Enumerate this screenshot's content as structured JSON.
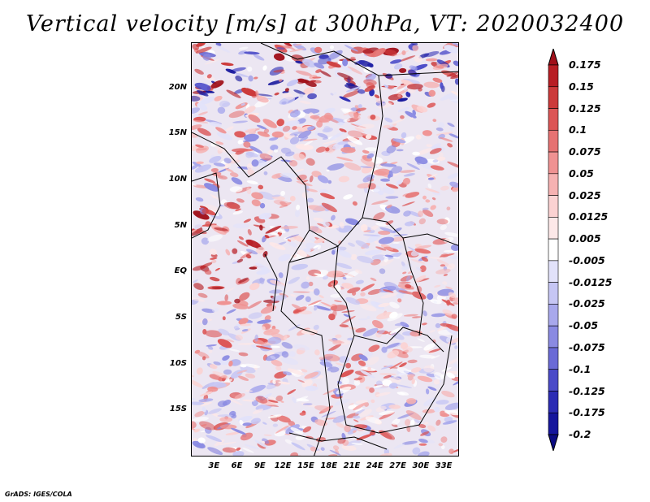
{
  "title": "Vertical velocity [m/s] at 300hPa, VT: 2020032400",
  "credit": "GrADS: IGES/COLA",
  "map": {
    "lat_labels": [
      "20N",
      "15N",
      "10N",
      "5N",
      "EQ",
      "5S",
      "10S",
      "15S"
    ],
    "lat_values": [
      20,
      15,
      10,
      5,
      0,
      -5,
      -10,
      -15
    ],
    "lon_labels": [
      "3E",
      "6E",
      "9E",
      "12E",
      "15E",
      "18E",
      "21E",
      "24E",
      "27E",
      "30E",
      "33E"
    ],
    "lon_values": [
      3,
      6,
      9,
      12,
      15,
      18,
      21,
      24,
      27,
      30,
      33
    ],
    "lon_range": [
      0,
      35
    ],
    "lat_range": [
      -20,
      25
    ]
  },
  "colorbar": {
    "labels": [
      "0.175",
      "0.15",
      "0.125",
      "0.1",
      "0.075",
      "0.05",
      "0.025",
      "0.0125",
      "0.005",
      "-0.005",
      "-0.0125",
      "-0.025",
      "-0.05",
      "-0.075",
      "-0.1",
      "-0.125",
      "-0.175",
      "-0.2"
    ],
    "colors": [
      "#a0101a",
      "#b81e24",
      "#cc3a3a",
      "#dc5555",
      "#e67272",
      "#ef9292",
      "#f6b2b2",
      "#fbd2d2",
      "#fde8e8",
      "#ffffff",
      "#e2e2fa",
      "#c6c6f4",
      "#a8a8ec",
      "#8a8ae2",
      "#6a6ad6",
      "#4a4ac8",
      "#2c2cb4",
      "#16169c",
      "#0c0c82"
    ]
  }
}
